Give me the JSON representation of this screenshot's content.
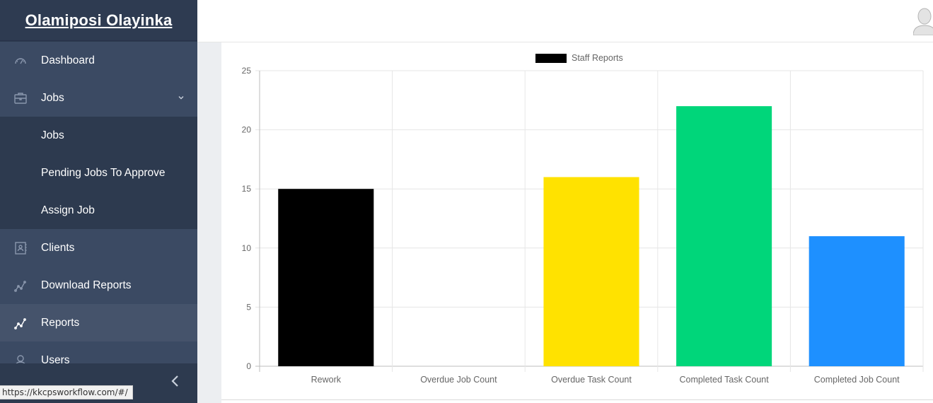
{
  "sidebar": {
    "brand": "Olamiposi Olayinka",
    "items": [
      {
        "label": "Dashboard",
        "icon": "speedometer-icon"
      },
      {
        "label": "Jobs",
        "icon": "briefcase-icon"
      },
      {
        "label": "Jobs"
      },
      {
        "label": "Pending Jobs To Approve"
      },
      {
        "label": "Assign Job"
      },
      {
        "label": "Clients",
        "icon": "contact-book-icon"
      },
      {
        "label": "Download Reports",
        "icon": "chart-line-icon"
      },
      {
        "label": "Reports",
        "icon": "chart-line-icon"
      },
      {
        "label": "Users",
        "icon": "user-icon"
      }
    ]
  },
  "status_bar": {
    "url": "https://kkcpsworkflow.com/#/"
  },
  "colors": {
    "sidebar": "#2d3a4f",
    "accent_black": "#000000",
    "accent_yellow": "#ffe200",
    "accent_green": "#00d67a",
    "accent_blue": "#1e90ff"
  },
  "chart_data": {
    "type": "bar",
    "categories": [
      "Rework",
      "Overdue Job Count",
      "Overdue Task Count",
      "Completed Task Count",
      "Completed Job Count"
    ],
    "series": [
      {
        "name": "Staff Reports",
        "values": [
          15,
          0,
          16,
          22,
          11
        ],
        "colors": [
          "#000000",
          "#ff6384",
          "#ffe200",
          "#00d67a",
          "#1e90ff"
        ]
      }
    ],
    "ylim": [
      0,
      25
    ],
    "yticks": [
      0,
      5,
      10,
      15,
      20,
      25
    ],
    "grid": true,
    "legend": "top"
  }
}
